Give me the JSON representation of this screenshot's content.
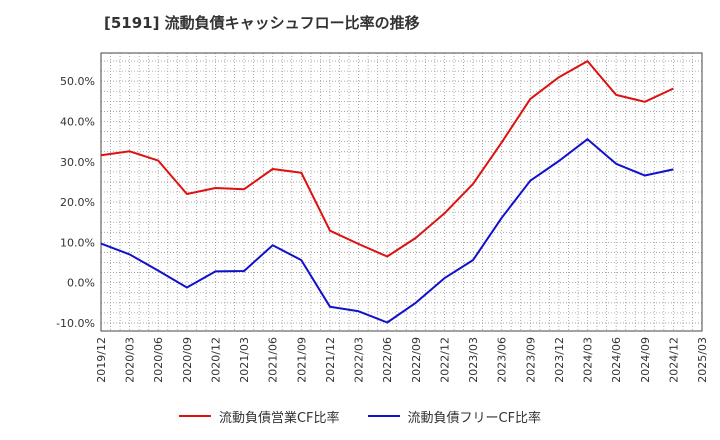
{
  "chart_data": {
    "type": "line",
    "title": "[5191]  流動負債キャッシュフロー比率の推移",
    "x": [
      "2019/12",
      "2020/03",
      "2020/06",
      "2020/09",
      "2020/12",
      "2021/03",
      "2021/06",
      "2021/09",
      "2021/12",
      "2022/03",
      "2022/06",
      "2022/09",
      "2022/12",
      "2023/03",
      "2023/06",
      "2023/09",
      "2023/12",
      "2024/03",
      "2024/06",
      "2024/09",
      "2024/12",
      "2025/03"
    ],
    "ylim": [
      -12,
      57
    ],
    "yticks": [
      -10,
      0,
      10,
      20,
      30,
      40,
      50
    ],
    "ytick_labels": [
      "-10.0%",
      "0.0%",
      "10.0%",
      "20.0%",
      "30.0%",
      "40.0%",
      "50.0%"
    ],
    "grid": true,
    "legend_position": "bottom-center",
    "series": [
      {
        "name": "流動負債営業CF比率",
        "color": "#dd1111",
        "values": [
          31.6,
          32.6,
          30.3,
          22.0,
          23.5,
          23.2,
          28.2,
          27.3,
          12.9,
          9.6,
          6.5,
          11.1,
          17.2,
          24.5,
          34.8,
          45.6,
          51.0,
          55.0,
          46.6,
          44.9,
          48.2,
          null
        ]
      },
      {
        "name": "流動負債フリーCF比率",
        "color": "#1111cc",
        "values": [
          9.7,
          7.0,
          3.0,
          -1.2,
          2.8,
          2.9,
          9.3,
          5.6,
          -6.0,
          -7.1,
          -9.9,
          -5.0,
          1.1,
          5.6,
          16.1,
          25.3,
          30.2,
          35.6,
          29.5,
          26.6,
          28.1,
          null
        ]
      }
    ]
  }
}
